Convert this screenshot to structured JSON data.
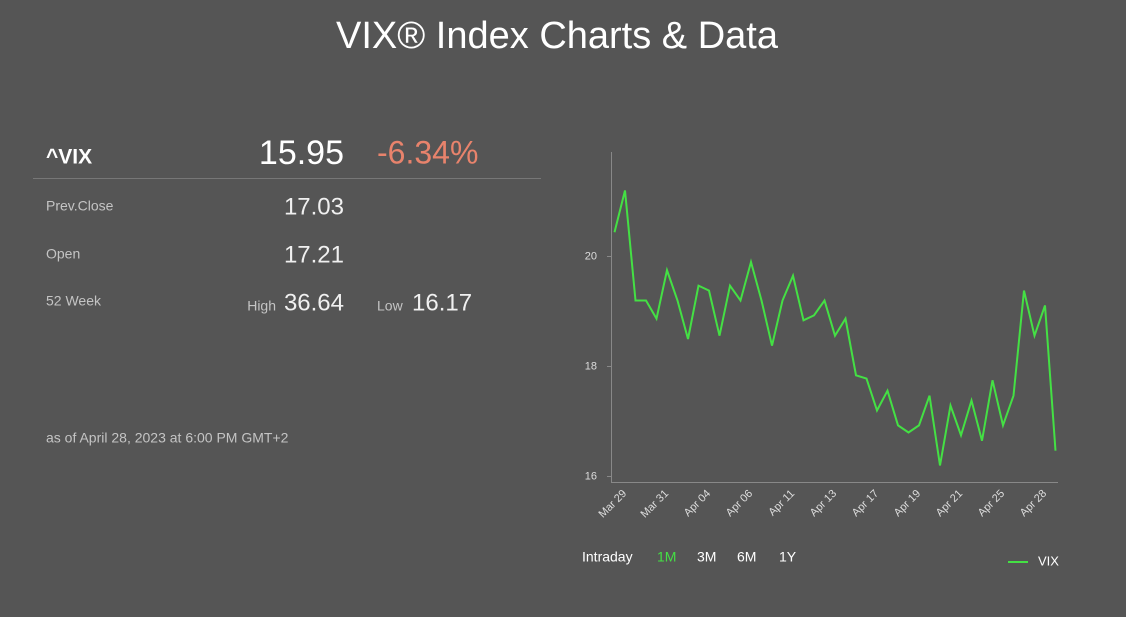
{
  "header": {
    "title": "VIX® Index Charts & Data"
  },
  "quote": {
    "symbol": "^VIX",
    "price": "15.95",
    "change": "-6.34%",
    "rows": [
      {
        "label": "Prev.Close",
        "value": "17.03"
      },
      {
        "label": "Open",
        "value": "17.21"
      }
    ],
    "week52": {
      "label": "52 Week",
      "high_label": "High",
      "high": "36.64",
      "low_label": "Low",
      "low": "16.17"
    },
    "timestamp": "as of April 28, 2023 at 6:00 PM GMT+2"
  },
  "range_buttons": [
    "Intraday",
    "1M",
    "3M",
    "6M",
    "1Y"
  ],
  "chart_data": {
    "type": "line",
    "categories": [
      null,
      "Mar 29",
      null,
      null,
      null,
      "Mar 31",
      null,
      null,
      null,
      "Apr 04",
      null,
      null,
      null,
      "Apr 06",
      null,
      null,
      null,
      "Apr 11",
      null,
      null,
      null,
      "Apr 13",
      null,
      null,
      null,
      "Apr 17",
      null,
      null,
      null,
      "Apr 19",
      null,
      null,
      null,
      "Apr 21",
      null,
      null,
      null,
      "Apr 25",
      null,
      null,
      null,
      "Apr 28",
      null
    ],
    "series": [
      {
        "name": "VIX",
        "color": "#44e044",
        "values": [
          20.44,
          21.2,
          19.2,
          19.2,
          18.87,
          19.75,
          19.2,
          18.5,
          19.47,
          19.38,
          18.56,
          19.47,
          19.2,
          19.9,
          19.2,
          18.38,
          19.2,
          19.65,
          18.84,
          18.93,
          19.2,
          18.56,
          18.87,
          17.84,
          17.78,
          17.2,
          17.56,
          16.93,
          16.8,
          16.93,
          17.47,
          16.2,
          17.29,
          16.75,
          17.38,
          16.65,
          17.75,
          16.93,
          17.47,
          19.38,
          18.56,
          19.11,
          16.47
        ]
      }
    ],
    "ylim": [
      15.9,
      21.9
    ],
    "yticks": [
      16,
      18,
      20
    ],
    "legend": "bottom-right"
  }
}
